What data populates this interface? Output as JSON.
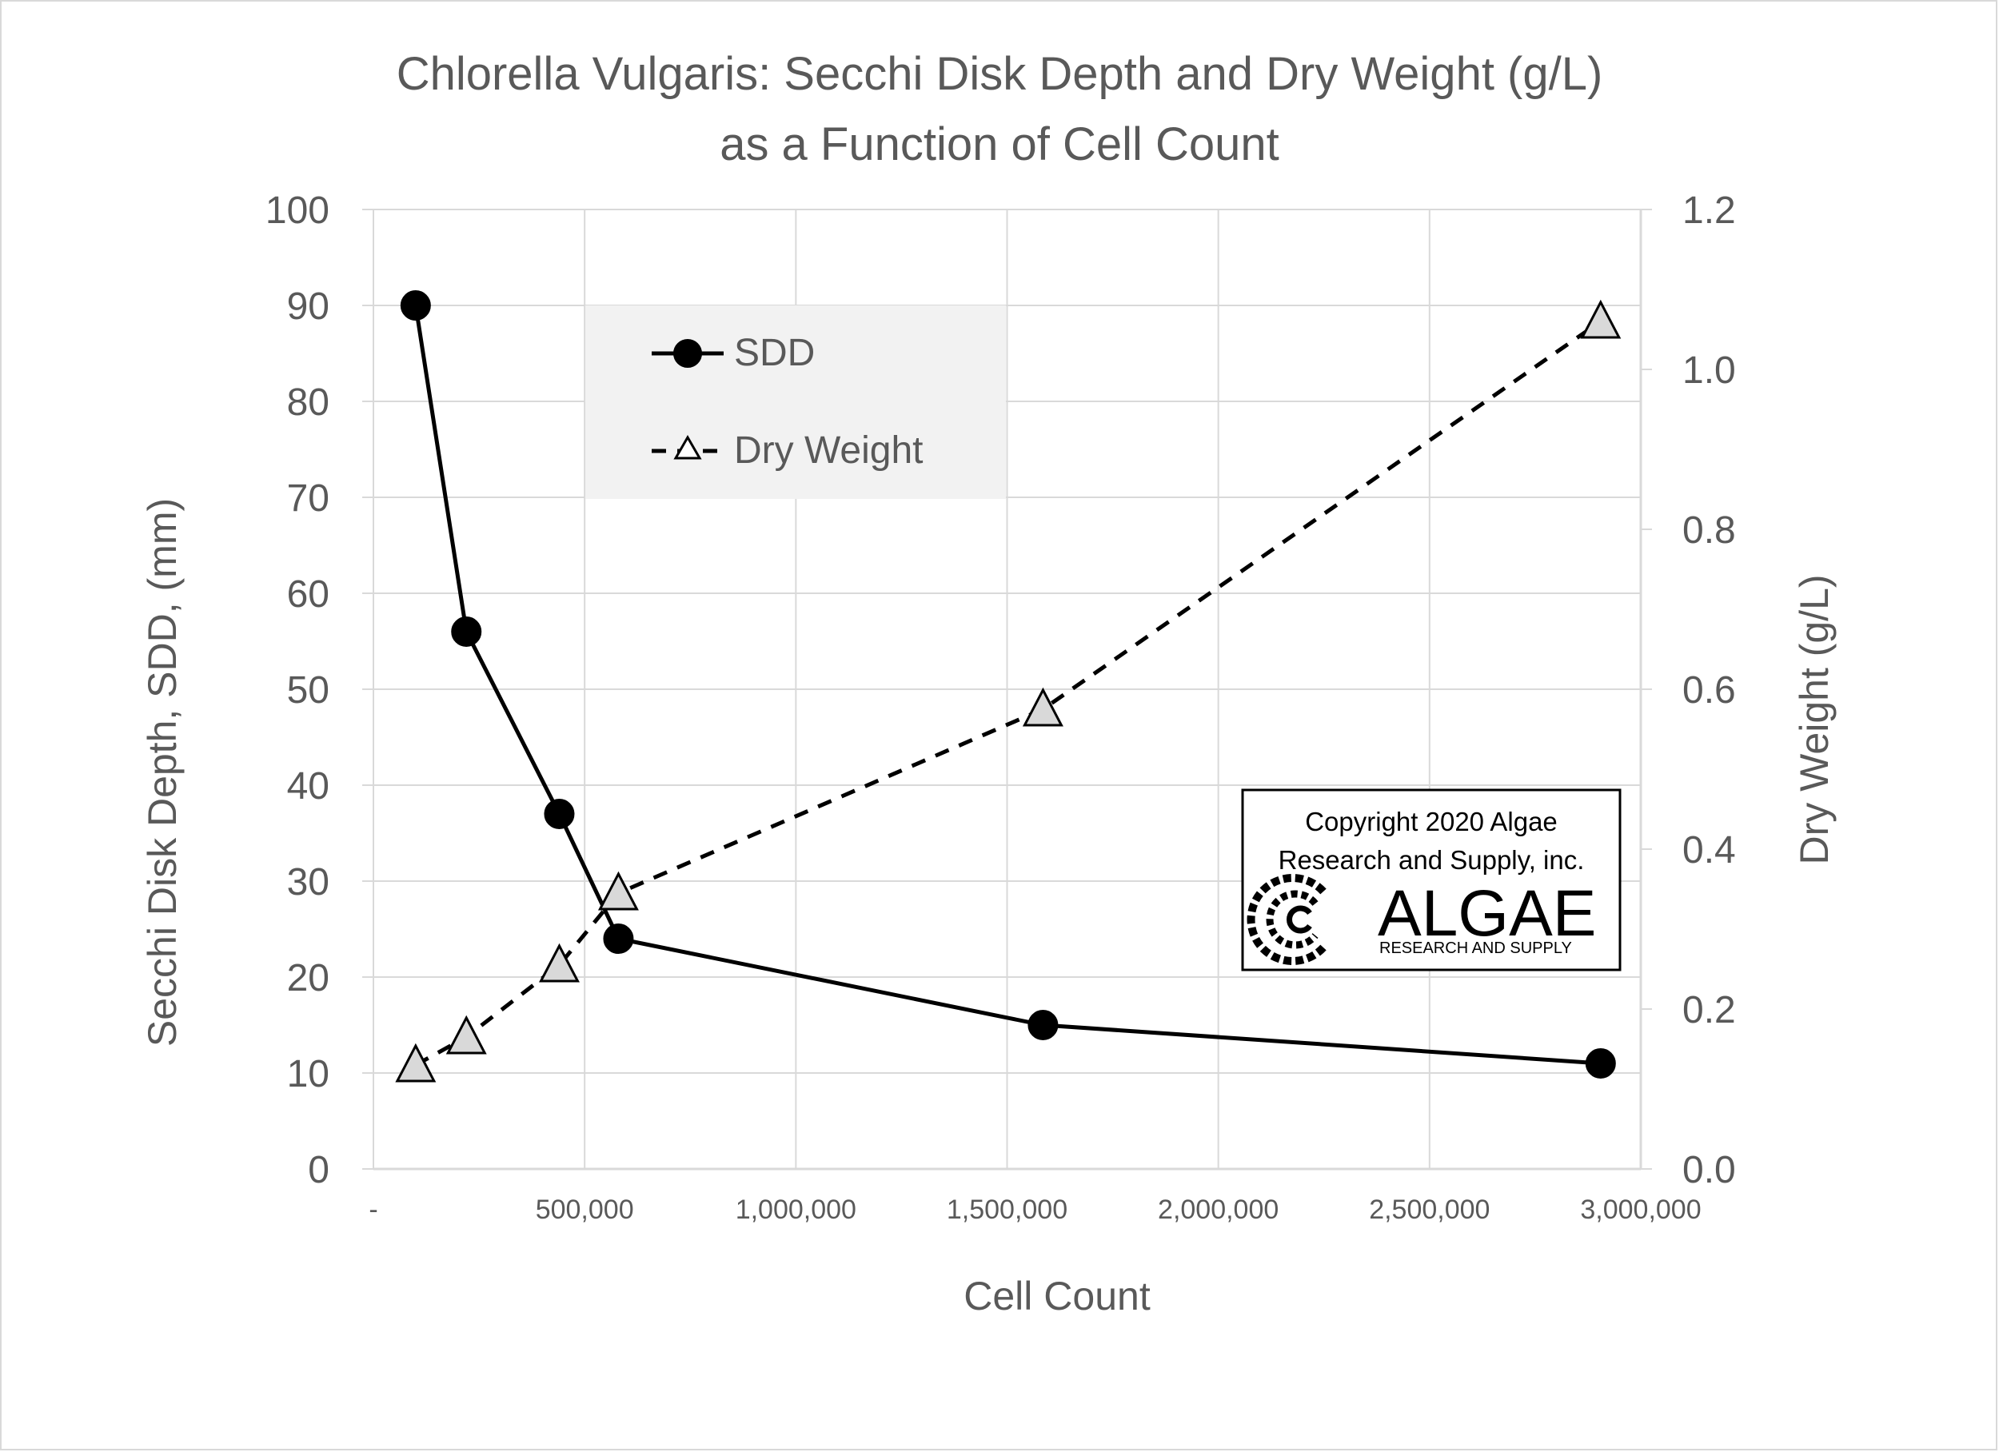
{
  "chart_data": {
    "type": "line",
    "title_line1": "Chlorella Vulgaris:  Secchi Disk Depth and Dry Weight (g/L)",
    "title_line2": "as a Function of Cell Count",
    "xlabel": "Cell Count",
    "ylabel_left": "Secchi Disk Depth, SDD, (mm)",
    "ylabel_right": "Dry Weight (g/L)",
    "xlim": [
      0,
      3000000
    ],
    "ylim_left": [
      0,
      100
    ],
    "ylim_right": [
      0,
      1.2
    ],
    "x_ticks": [
      0,
      500000,
      1000000,
      1500000,
      2000000,
      2500000,
      3000000
    ],
    "x_tick_labels": [
      "-",
      "500,000",
      "1,000,000",
      "1,500,000",
      "2,000,000",
      "2,500,000",
      "3,000,000"
    ],
    "y_left_ticks": [
      0,
      10,
      20,
      30,
      40,
      50,
      60,
      70,
      80,
      90,
      100
    ],
    "y_left_tick_labels": [
      "0",
      "10",
      "20",
      "30",
      "40",
      "50",
      "60",
      "70",
      "80",
      "90",
      "100"
    ],
    "y_right_ticks": [
      0,
      0.2,
      0.4,
      0.6,
      0.8,
      1.0,
      1.2
    ],
    "y_right_tick_labels": [
      "0.0",
      "0.2",
      "0.4",
      "0.6",
      "0.8",
      "1.0",
      "1.2"
    ],
    "grid": true,
    "legend_position": "top-left",
    "series": [
      {
        "name": "SDD",
        "axis": "left",
        "marker": "circle",
        "line": "solid",
        "color": "#000000",
        "x": [
          100000,
          220000,
          440000,
          580000,
          1585000,
          2905000
        ],
        "y": [
          90,
          56,
          37,
          24,
          15,
          11
        ]
      },
      {
        "name": "Dry Weight",
        "axis": "right",
        "marker": "triangle",
        "line": "dashed",
        "color": "#000000",
        "marker_fill": "#d9d9d9",
        "x": [
          100000,
          220000,
          440000,
          580000,
          1585000,
          2905000
        ],
        "y": [
          0.13,
          0.165,
          0.255,
          0.345,
          0.575,
          1.06
        ]
      }
    ]
  },
  "watermark": {
    "line1": "Copyright 2020 Algae",
    "line2": "Research and Supply, inc.",
    "logo_word": "ALGAE",
    "logo_sub": "RESEARCH AND SUPPLY"
  },
  "colors": {
    "text": "#595959",
    "grid": "#d9d9d9",
    "legend_bg": "#f2f2f2",
    "marker_fill": "#d9d9d9"
  }
}
